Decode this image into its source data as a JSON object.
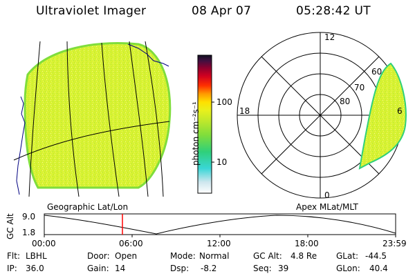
{
  "header": {
    "instrument": "Ultraviolet Imager",
    "date": "08 Apr 07",
    "time": "05:28:42 UT"
  },
  "colorbar": {
    "unit_label": "photon cm⁻²s⁻¹",
    "tick_100": "100",
    "tick_10": "10",
    "colors": [
      "#ffffff",
      "#cfe6ee",
      "#39d6d6",
      "#2fd07a",
      "#7fdd3c",
      "#bde82c",
      "#e8f01c",
      "#ffe000",
      "#ff9a00",
      "#ff3000",
      "#d00020",
      "#8a0030",
      "#401040",
      "#101020"
    ]
  },
  "left_panel": {
    "caption": "Geographic Lat/Lon",
    "image_fill": "#d8f232"
  },
  "right_panel": {
    "caption": "Apex MLat/MLT",
    "mlt_12": "12",
    "mlt_18": "18",
    "mlt_6": "6",
    "mlt_0": "0",
    "lat_60": "60",
    "lat_70": "70",
    "lat_80": "80"
  },
  "altitude_plot": {
    "ylabel": "GC Alt",
    "ytick_top": "9.0",
    "ytick_bottom": "1.8",
    "xticks": [
      "00:00",
      "06:00",
      "12:00",
      "18:00",
      "23:59"
    ],
    "marker_color": "#ff0000"
  },
  "footer": {
    "flt_label": "Flt:",
    "flt_value": "LBHL",
    "ip_label": "IP:",
    "ip_value": "36.0",
    "door_label": "Door:",
    "door_value": "Open",
    "gain_label": "Gain:",
    "gain_value": "14",
    "mode_label": "Mode:",
    "mode_value": "Normal",
    "dsp_label": "Dsp:",
    "dsp_value": "-8.2",
    "gcalt_label": "GC Alt:",
    "gcalt_value": "4.8 Re",
    "seq_label": "Seq:",
    "seq_value": "39",
    "glat_label": "GLat:",
    "glat_value": "-44.5",
    "glon_label": "GLon:",
    "glon_value": "40.4"
  }
}
